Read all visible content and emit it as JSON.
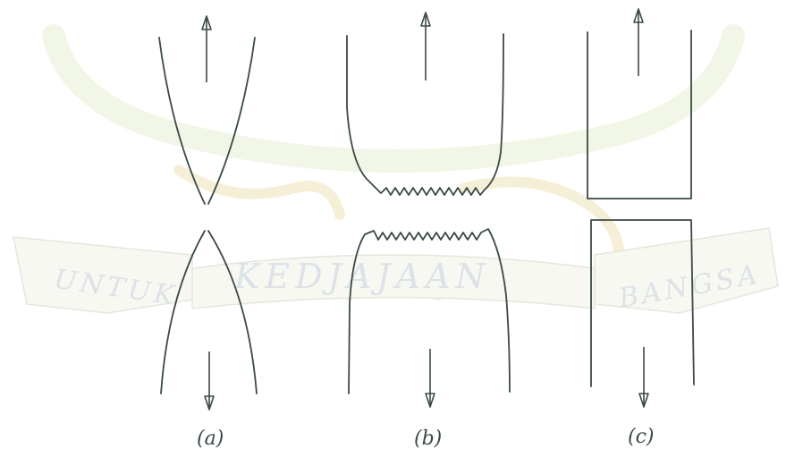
{
  "watermark": {
    "ribbon_left": "UNTUK",
    "ribbon_center": "KEDJAJAAN",
    "ribbon_right": "BANGSA"
  },
  "panels": [
    {
      "id": "a",
      "label": "(a)"
    },
    {
      "id": "b",
      "label": "(b)"
    },
    {
      "id": "c",
      "label": "(c)"
    }
  ],
  "colors": {
    "line": "#3a4a44",
    "watermark_band": "#f2f6e6",
    "watermark_text": "#dde2e8"
  }
}
